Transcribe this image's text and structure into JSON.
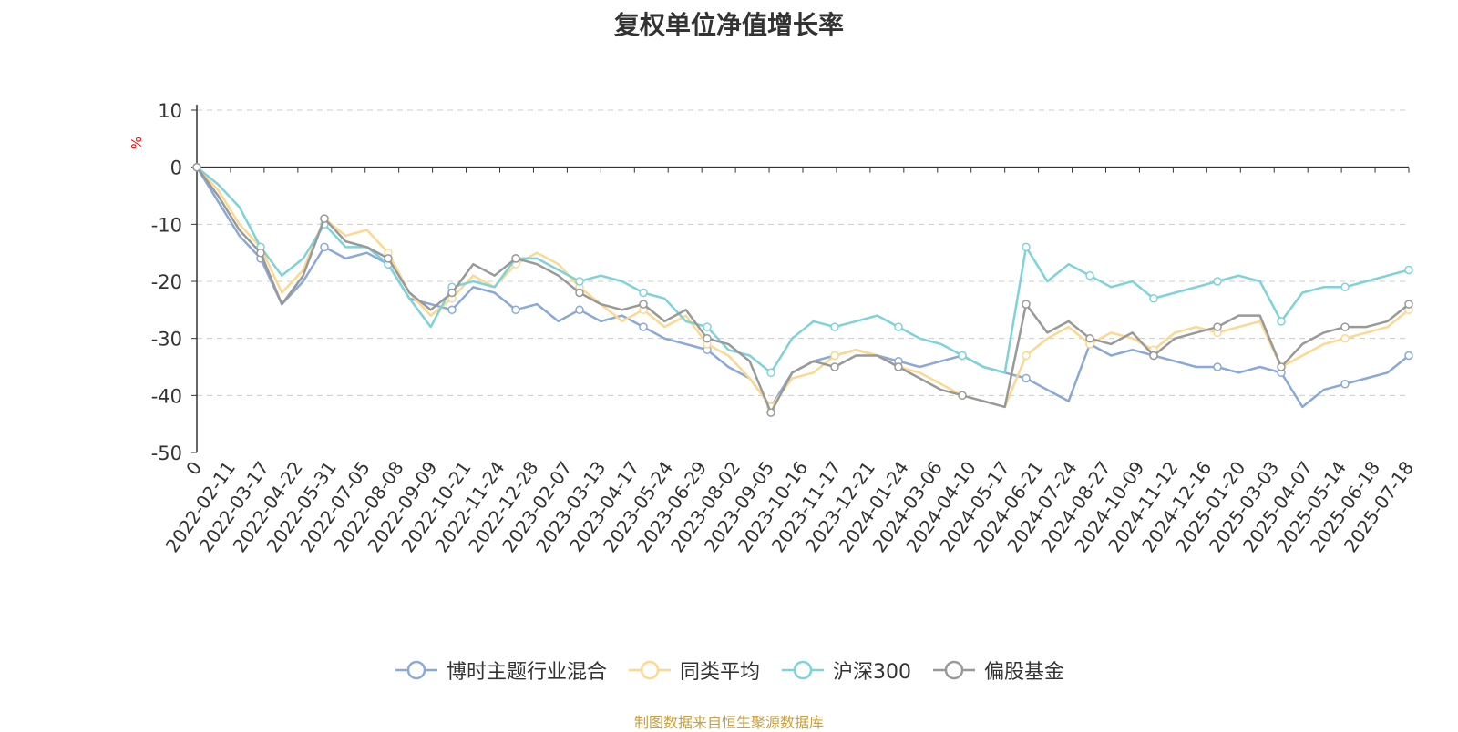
{
  "chart_data": {
    "type": "line",
    "title": "复权单位净值增长率",
    "ylabel": "%",
    "ylim": [
      -50,
      10
    ],
    "yticks": [
      10,
      0,
      -10,
      -20,
      -30,
      -40,
      -50
    ],
    "grid": true,
    "legend_position": "bottom",
    "x_tick_labels": [
      "0",
      "2022-02-11",
      "2022-03-17",
      "2022-04-22",
      "2022-05-31",
      "2022-07-05",
      "2022-08-08",
      "2022-09-09",
      "2022-10-21",
      "2022-11-24",
      "2022-12-28",
      "2023-02-07",
      "2023-03-13",
      "2023-04-17",
      "2023-05-24",
      "2023-06-29",
      "2023-08-02",
      "2023-09-05",
      "2023-10-16",
      "2023-11-17",
      "2023-12-21",
      "2024-01-24",
      "2024-03-06",
      "2024-04-10",
      "2024-05-17",
      "2024-06-21",
      "2024-07-24",
      "2024-08-27",
      "2024-10-09",
      "2024-11-12",
      "2024-12-16",
      "2025-01-20",
      "2025-03-03",
      "2025-04-07",
      "2025-05-14",
      "2025-06-18",
      "2025-07-18"
    ],
    "series": [
      {
        "name": "博时主题行业混合",
        "color": "#8aa8d8",
        "values": [
          0,
          -6,
          -12,
          -16,
          -24,
          -20,
          -14,
          -16,
          -15,
          -17,
          -23,
          -24,
          -25,
          -21,
          -22,
          -25,
          -24,
          -27,
          -25,
          -27,
          -26,
          -28,
          -30,
          -31,
          -32,
          -35,
          -37,
          -42,
          -36,
          -34,
          -33,
          -32,
          -33,
          -34,
          -35,
          -34,
          -33,
          -35,
          -36,
          -37,
          -39,
          -41,
          -31,
          -33,
          -32,
          -33,
          -34,
          -35,
          -35,
          -36,
          -35,
          -36,
          -42,
          -39,
          -38,
          -37,
          -36,
          -33
        ]
      },
      {
        "name": "同类平均",
        "color": "#fcd890",
        "values": [
          0,
          -4,
          -10,
          -14,
          -22,
          -18,
          -9,
          -12,
          -11,
          -15,
          -22,
          -26,
          -23,
          -19,
          -21,
          -17,
          -15,
          -17,
          -21,
          -24,
          -27,
          -25,
          -28,
          -26,
          -31,
          -33,
          -37,
          -42,
          -37,
          -36,
          -33,
          -32,
          -33,
          -35,
          -36,
          -38,
          -40,
          -41,
          -42,
          -33,
          -30,
          -28,
          -31,
          -29,
          -30,
          -32,
          -29,
          -28,
          -29,
          -28,
          -27,
          -35,
          -33,
          -31,
          -30,
          -29,
          -28,
          -25
        ]
      },
      {
        "name": "沪深300",
        "color": "#7dd3d8",
        "values": [
          0,
          -3,
          -7,
          -14,
          -19,
          -16,
          -10,
          -14,
          -14,
          -17,
          -23,
          -28,
          -21,
          -20,
          -21,
          -16,
          -16,
          -18,
          -20,
          -19,
          -20,
          -22,
          -23,
          -27,
          -28,
          -32,
          -33,
          -36,
          -30,
          -27,
          -28,
          -27,
          -26,
          -28,
          -30,
          -31,
          -33,
          -35,
          -36,
          -14,
          -20,
          -17,
          -19,
          -21,
          -20,
          -23,
          -22,
          -21,
          -20,
          -19,
          -20,
          -27,
          -22,
          -21,
          -21,
          -20,
          -19,
          -18
        ]
      },
      {
        "name": "偏股基金",
        "color": "#999999",
        "values": [
          0,
          -5,
          -11,
          -15,
          -24,
          -19,
          -9,
          -13,
          -14,
          -16,
          -22,
          -25,
          -22,
          -17,
          -19,
          -16,
          -17,
          -19,
          -22,
          -24,
          -25,
          -24,
          -27,
          -25,
          -30,
          -31,
          -34,
          -43,
          -36,
          -34,
          -35,
          -33,
          -33,
          -35,
          -37,
          -39,
          -40,
          -41,
          -42,
          -24,
          -29,
          -27,
          -30,
          -31,
          -29,
          -33,
          -30,
          -29,
          -28,
          -26,
          -26,
          -35,
          -31,
          -29,
          -28,
          -28,
          -27,
          -24
        ]
      }
    ]
  },
  "source_note": "制图数据来自恒生聚源数据库"
}
